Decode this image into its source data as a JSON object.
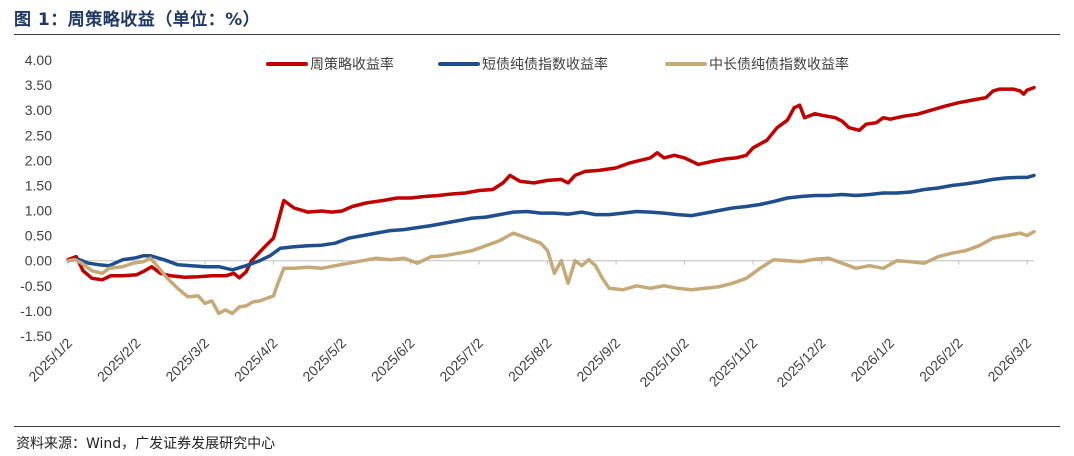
{
  "title": "图 1：周策略收益（单位：%）",
  "source": "资料来源：Wind，广发证券发展研究中心",
  "colors": {
    "strategy": "#c00000",
    "short_bond": "#1f4e8c",
    "long_bond": "#c5aa78",
    "rule": "#3a3a3a",
    "tick": "#404040"
  },
  "chart_data": {
    "type": "line",
    "title": "周策略收益（单位：%）",
    "xlabel": "",
    "ylabel": "",
    "ylim": [
      -1.5,
      4.0
    ],
    "yticks": [
      "4.00",
      "3.50",
      "3.00",
      "2.50",
      "2.00",
      "1.50",
      "1.00",
      "0.50",
      "0.00",
      "-0.50",
      "-1.00",
      "-1.50"
    ],
    "x_tick_labels": [
      "2025/1/2",
      "2025/2/2",
      "2025/3/2",
      "2025/4/2",
      "2025/5/2",
      "2025/6/2",
      "2025/7/2",
      "2025/8/2",
      "2025/9/2",
      "2025/10/2",
      "2025/11/2",
      "2025/12/2",
      "2026/1/2",
      "2026/2/2",
      "2026/3/2"
    ],
    "x_months_range": [
      0,
      14.1
    ],
    "legend_position": "top",
    "series": [
      {
        "name": "周策略收益率",
        "color_key": "strategy",
        "points": [
          [
            0,
            0.02
          ],
          [
            0.12,
            0.08
          ],
          [
            0.22,
            -0.2
          ],
          [
            0.35,
            -0.35
          ],
          [
            0.5,
            -0.38
          ],
          [
            0.62,
            -0.3
          ],
          [
            0.8,
            -0.3
          ],
          [
            1.0,
            -0.28
          ],
          [
            1.12,
            -0.2
          ],
          [
            1.22,
            -0.12
          ],
          [
            1.35,
            -0.25
          ],
          [
            1.5,
            -0.3
          ],
          [
            1.7,
            -0.33
          ],
          [
            1.9,
            -0.32
          ],
          [
            2.1,
            -0.3
          ],
          [
            2.3,
            -0.3
          ],
          [
            2.42,
            -0.25
          ],
          [
            2.5,
            -0.34
          ],
          [
            2.6,
            -0.22
          ],
          [
            2.68,
            0.0
          ],
          [
            2.85,
            0.25
          ],
          [
            3.0,
            0.45
          ],
          [
            3.05,
            0.7
          ],
          [
            3.15,
            1.2
          ],
          [
            3.3,
            1.05
          ],
          [
            3.5,
            0.97
          ],
          [
            3.7,
            0.99
          ],
          [
            3.85,
            0.97
          ],
          [
            4.0,
            0.99
          ],
          [
            4.15,
            1.08
          ],
          [
            4.35,
            1.15
          ],
          [
            4.6,
            1.2
          ],
          [
            4.8,
            1.25
          ],
          [
            5.0,
            1.25
          ],
          [
            5.2,
            1.28
          ],
          [
            5.4,
            1.3
          ],
          [
            5.6,
            1.33
          ],
          [
            5.8,
            1.35
          ],
          [
            6.0,
            1.4
          ],
          [
            6.2,
            1.42
          ],
          [
            6.35,
            1.55
          ],
          [
            6.45,
            1.7
          ],
          [
            6.6,
            1.58
          ],
          [
            6.8,
            1.55
          ],
          [
            7.0,
            1.6
          ],
          [
            7.2,
            1.62
          ],
          [
            7.3,
            1.55
          ],
          [
            7.4,
            1.7
          ],
          [
            7.55,
            1.78
          ],
          [
            7.75,
            1.8
          ],
          [
            8.0,
            1.85
          ],
          [
            8.2,
            1.95
          ],
          [
            8.5,
            2.05
          ],
          [
            8.6,
            2.15
          ],
          [
            8.7,
            2.05
          ],
          [
            8.85,
            2.1
          ],
          [
            9.0,
            2.05
          ],
          [
            9.2,
            1.92
          ],
          [
            9.4,
            1.98
          ],
          [
            9.6,
            2.03
          ],
          [
            9.75,
            2.05
          ],
          [
            9.9,
            2.1
          ],
          [
            10.0,
            2.25
          ],
          [
            10.2,
            2.4
          ],
          [
            10.35,
            2.65
          ],
          [
            10.5,
            2.8
          ],
          [
            10.6,
            3.05
          ],
          [
            10.68,
            3.1
          ],
          [
            10.75,
            2.85
          ],
          [
            10.9,
            2.93
          ],
          [
            11.0,
            2.9
          ],
          [
            11.2,
            2.85
          ],
          [
            11.3,
            2.78
          ],
          [
            11.4,
            2.65
          ],
          [
            11.55,
            2.6
          ],
          [
            11.65,
            2.72
          ],
          [
            11.8,
            2.75
          ],
          [
            11.9,
            2.85
          ],
          [
            12.0,
            2.82
          ],
          [
            12.2,
            2.88
          ],
          [
            12.4,
            2.92
          ],
          [
            12.6,
            3.0
          ],
          [
            12.8,
            3.08
          ],
          [
            13.0,
            3.15
          ],
          [
            13.2,
            3.2
          ],
          [
            13.4,
            3.25
          ],
          [
            13.5,
            3.38
          ],
          [
            13.6,
            3.42
          ],
          [
            13.8,
            3.42
          ],
          [
            13.9,
            3.38
          ],
          [
            13.95,
            3.32
          ],
          [
            14.0,
            3.4
          ],
          [
            14.1,
            3.45
          ]
        ]
      },
      {
        "name": "短债纯债指数收益率",
        "color_key": "short_bond",
        "points": [
          [
            0,
            0.0
          ],
          [
            0.15,
            0.03
          ],
          [
            0.3,
            -0.05
          ],
          [
            0.45,
            -0.08
          ],
          [
            0.6,
            -0.1
          ],
          [
            0.8,
            0.02
          ],
          [
            1.0,
            0.06
          ],
          [
            1.1,
            0.1
          ],
          [
            1.2,
            0.1
          ],
          [
            1.4,
            0.02
          ],
          [
            1.6,
            -0.08
          ],
          [
            1.8,
            -0.1
          ],
          [
            2.0,
            -0.12
          ],
          [
            2.2,
            -0.12
          ],
          [
            2.4,
            -0.18
          ],
          [
            2.6,
            -0.1
          ],
          [
            2.8,
            0.0
          ],
          [
            2.95,
            0.1
          ],
          [
            3.1,
            0.25
          ],
          [
            3.3,
            0.28
          ],
          [
            3.5,
            0.3
          ],
          [
            3.7,
            0.31
          ],
          [
            3.9,
            0.35
          ],
          [
            4.1,
            0.45
          ],
          [
            4.3,
            0.5
          ],
          [
            4.5,
            0.55
          ],
          [
            4.7,
            0.6
          ],
          [
            4.9,
            0.62
          ],
          [
            5.1,
            0.66
          ],
          [
            5.3,
            0.7
          ],
          [
            5.5,
            0.75
          ],
          [
            5.7,
            0.8
          ],
          [
            5.9,
            0.85
          ],
          [
            6.1,
            0.87
          ],
          [
            6.3,
            0.92
          ],
          [
            6.5,
            0.97
          ],
          [
            6.7,
            0.98
          ],
          [
            6.9,
            0.95
          ],
          [
            7.1,
            0.95
          ],
          [
            7.3,
            0.93
          ],
          [
            7.5,
            0.97
          ],
          [
            7.7,
            0.92
          ],
          [
            7.9,
            0.92
          ],
          [
            8.1,
            0.95
          ],
          [
            8.3,
            0.98
          ],
          [
            8.5,
            0.97
          ],
          [
            8.7,
            0.95
          ],
          [
            8.9,
            0.92
          ],
          [
            9.1,
            0.9
          ],
          [
            9.3,
            0.95
          ],
          [
            9.5,
            1.0
          ],
          [
            9.7,
            1.05
          ],
          [
            9.9,
            1.08
          ],
          [
            10.1,
            1.12
          ],
          [
            10.3,
            1.18
          ],
          [
            10.5,
            1.25
          ],
          [
            10.7,
            1.28
          ],
          [
            10.9,
            1.3
          ],
          [
            11.1,
            1.3
          ],
          [
            11.3,
            1.32
          ],
          [
            11.5,
            1.3
          ],
          [
            11.7,
            1.32
          ],
          [
            11.9,
            1.35
          ],
          [
            12.1,
            1.35
          ],
          [
            12.3,
            1.37
          ],
          [
            12.5,
            1.42
          ],
          [
            12.7,
            1.45
          ],
          [
            12.9,
            1.5
          ],
          [
            13.1,
            1.53
          ],
          [
            13.3,
            1.57
          ],
          [
            13.5,
            1.62
          ],
          [
            13.7,
            1.65
          ],
          [
            13.9,
            1.66
          ],
          [
            14.0,
            1.66
          ],
          [
            14.1,
            1.7
          ]
        ]
      },
      {
        "name": "中长债纯债指数收益率",
        "color_key": "long_bond",
        "points": [
          [
            0,
            0.0
          ],
          [
            0.1,
            0.02
          ],
          [
            0.2,
            -0.05
          ],
          [
            0.35,
            -0.2
          ],
          [
            0.5,
            -0.25
          ],
          [
            0.6,
            -0.15
          ],
          [
            0.8,
            -0.12
          ],
          [
            0.95,
            -0.05
          ],
          [
            1.1,
            -0.02
          ],
          [
            1.2,
            0.05
          ],
          [
            1.3,
            -0.1
          ],
          [
            1.45,
            -0.35
          ],
          [
            1.6,
            -0.55
          ],
          [
            1.75,
            -0.72
          ],
          [
            1.9,
            -0.7
          ],
          [
            2.0,
            -0.85
          ],
          [
            2.1,
            -0.8
          ],
          [
            2.2,
            -1.05
          ],
          [
            2.3,
            -0.98
          ],
          [
            2.4,
            -1.05
          ],
          [
            2.5,
            -0.92
          ],
          [
            2.6,
            -0.9
          ],
          [
            2.7,
            -0.82
          ],
          [
            2.8,
            -0.8
          ],
          [
            2.9,
            -0.75
          ],
          [
            3.0,
            -0.7
          ],
          [
            3.05,
            -0.5
          ],
          [
            3.15,
            -0.15
          ],
          [
            3.3,
            -0.15
          ],
          [
            3.5,
            -0.13
          ],
          [
            3.7,
            -0.15
          ],
          [
            3.9,
            -0.1
          ],
          [
            4.1,
            -0.05
          ],
          [
            4.3,
            0.0
          ],
          [
            4.5,
            0.05
          ],
          [
            4.7,
            0.02
          ],
          [
            4.9,
            0.05
          ],
          [
            5.1,
            -0.05
          ],
          [
            5.3,
            0.08
          ],
          [
            5.5,
            0.1
          ],
          [
            5.7,
            0.15
          ],
          [
            5.9,
            0.2
          ],
          [
            6.1,
            0.3
          ],
          [
            6.3,
            0.4
          ],
          [
            6.5,
            0.55
          ],
          [
            6.7,
            0.45
          ],
          [
            6.9,
            0.35
          ],
          [
            7.0,
            0.2
          ],
          [
            7.1,
            -0.25
          ],
          [
            7.2,
            0.0
          ],
          [
            7.3,
            -0.45
          ],
          [
            7.4,
            0.0
          ],
          [
            7.5,
            -0.1
          ],
          [
            7.6,
            0.02
          ],
          [
            7.7,
            -0.1
          ],
          [
            7.8,
            -0.35
          ],
          [
            7.9,
            -0.55
          ],
          [
            8.1,
            -0.58
          ],
          [
            8.3,
            -0.5
          ],
          [
            8.5,
            -0.55
          ],
          [
            8.7,
            -0.5
          ],
          [
            8.9,
            -0.55
          ],
          [
            9.1,
            -0.58
          ],
          [
            9.3,
            -0.55
          ],
          [
            9.5,
            -0.52
          ],
          [
            9.7,
            -0.45
          ],
          [
            9.9,
            -0.35
          ],
          [
            10.1,
            -0.15
          ],
          [
            10.3,
            0.02
          ],
          [
            10.5,
            0.0
          ],
          [
            10.7,
            -0.02
          ],
          [
            10.9,
            0.03
          ],
          [
            11.1,
            0.05
          ],
          [
            11.3,
            -0.05
          ],
          [
            11.5,
            -0.15
          ],
          [
            11.7,
            -0.1
          ],
          [
            11.9,
            -0.15
          ],
          [
            12.1,
            0.0
          ],
          [
            12.3,
            -0.02
          ],
          [
            12.5,
            -0.05
          ],
          [
            12.7,
            0.08
          ],
          [
            12.9,
            0.15
          ],
          [
            13.1,
            0.2
          ],
          [
            13.3,
            0.3
          ],
          [
            13.5,
            0.45
          ],
          [
            13.7,
            0.5
          ],
          [
            13.9,
            0.55
          ],
          [
            14.0,
            0.5
          ],
          [
            14.1,
            0.58
          ]
        ]
      }
    ]
  }
}
